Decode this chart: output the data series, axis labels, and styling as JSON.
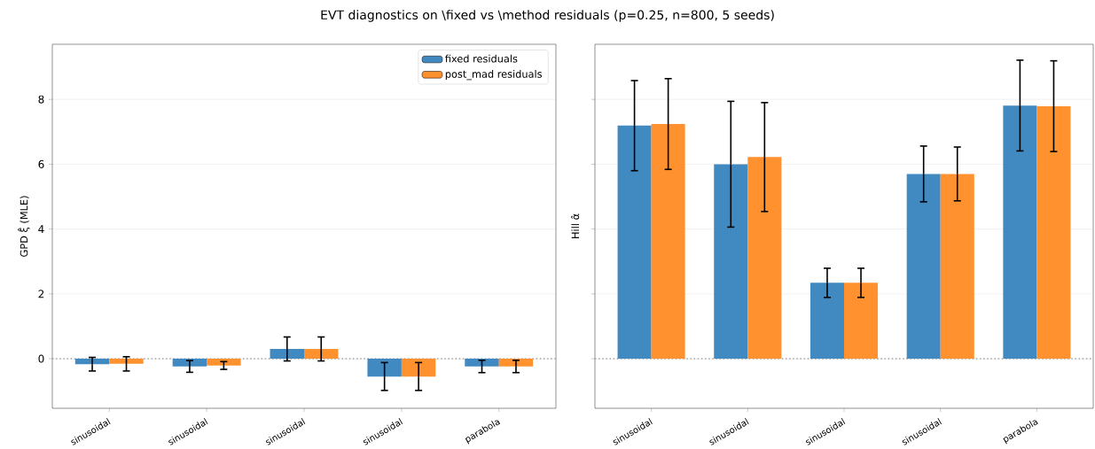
{
  "chart_data": [
    {
      "type": "bar",
      "title": "EVT diagnostics on \\fixed vs \\method residuals (p=0.25, n=800, 5 seeds)",
      "ylabel": "GPD ξ̂ (MLE)",
      "categories": [
        "sinusoidal",
        "sinusoidal",
        "sinusoidal",
        "sinusoidal",
        "parabola"
      ],
      "series": [
        {
          "name": "fixed residuals",
          "color": "#4189c1",
          "values": [
            -0.17,
            -0.24,
            0.3,
            -0.55,
            -0.24
          ],
          "errors": [
            0.21,
            0.18,
            0.37,
            0.43,
            0.19
          ]
        },
        {
          "name": "post_mad residuals",
          "color": "#ff922f",
          "values": [
            -0.16,
            -0.21,
            0.3,
            -0.55,
            -0.24
          ],
          "errors": [
            0.22,
            0.12,
            0.37,
            0.43,
            0.19
          ]
        }
      ],
      "ylim": [
        -1.53,
        9.7
      ],
      "yticks": [
        0,
        2,
        4,
        6,
        8
      ],
      "grid": "y",
      "legend": "top right",
      "ref_lines": [
        {
          "axis": "y",
          "value": 0,
          "color": "#999999",
          "line_style": "dotted"
        }
      ]
    },
    {
      "type": "bar",
      "ylabel": "Hill α̂",
      "categories": [
        "sinusoidal",
        "sinusoidal",
        "sinusoidal",
        "sinusoidal",
        "parabola"
      ],
      "series": [
        {
          "color": "#4189c1",
          "values": [
            7.19,
            6.0,
            2.34,
            5.7,
            7.81
          ],
          "errors": [
            1.39,
            1.94,
            0.45,
            0.86,
            1.4
          ]
        },
        {
          "color": "#ff922f",
          "values": [
            7.24,
            6.22,
            2.34,
            5.7,
            7.79
          ],
          "errors": [
            1.4,
            1.68,
            0.45,
            0.83,
            1.4
          ]
        }
      ],
      "ylim": [
        -1.53,
        9.7
      ],
      "yticks": [
        0,
        2,
        4,
        6,
        8
      ],
      "grid": "y",
      "tick_labels": "x",
      "ref_lines": [
        {
          "axis": "y",
          "value": 0,
          "color": "#999999",
          "line_style": "dotted"
        }
      ]
    }
  ]
}
